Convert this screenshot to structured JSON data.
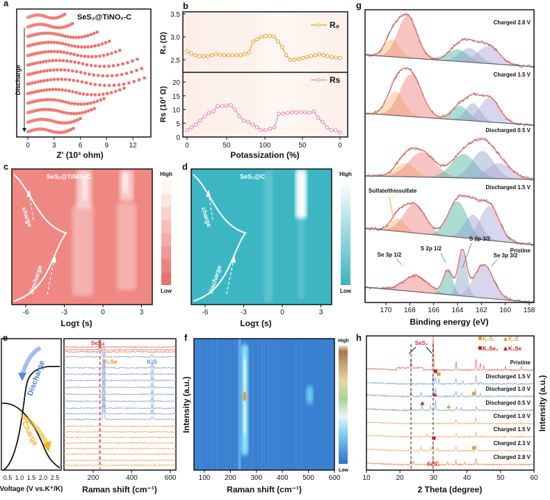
{
  "panels": {
    "a": "a",
    "b": "b",
    "c": "c",
    "d": "d",
    "e": "e",
    "f": "f",
    "g": "g",
    "h": "h"
  },
  "chart_data": [
    {
      "id": "a",
      "type": "scatter",
      "title": "SeS₂@TiNOₓ-C",
      "xlabel": "Z' (10³ ohm)",
      "xticks": [
        "0",
        "3",
        "6",
        "9",
        "12"
      ],
      "xlim": [
        -1.5,
        13.7
      ],
      "arrow_label": "Discharge",
      "curve_zmax": [
        4.2,
        5.1,
        7.9,
        9.3,
        10.5,
        12.5,
        13.0,
        13.3,
        11.0,
        8.7,
        7.6,
        6.0,
        5.2
      ]
    },
    {
      "id": "b",
      "type": "line",
      "xlabel": "Potassization (%)",
      "xticks": [
        "0",
        "50",
        "100",
        "50",
        "0"
      ],
      "top": {
        "ylabel": "R₀ (Ω)",
        "legend": "R₀",
        "color": "#f0a640",
        "ylim": [
          2.2,
          3.5
        ],
        "yticks": [
          "3.5",
          "3.0",
          "2.5"
        ],
        "values": [
          2.68,
          2.64,
          2.6,
          2.58,
          2.58,
          2.58,
          2.6,
          2.62,
          2.61,
          2.6,
          2.6,
          2.6,
          2.6,
          2.6,
          2.62,
          2.66,
          2.9,
          2.95,
          3.0,
          3.02,
          3.02,
          3.01,
          2.9,
          2.78,
          2.6,
          2.5,
          2.5,
          2.52,
          2.54,
          2.56,
          2.58,
          2.6,
          2.62,
          2.6,
          2.58,
          2.56,
          2.55,
          2.54
        ]
      },
      "bottom": {
        "ylabel": "Rs (10³ Ω)",
        "legend": "Rs",
        "color": "#e58fc0",
        "ylim": [
          0,
          23
        ],
        "yticks": [
          "20",
          "15",
          "10",
          "5",
          "0"
        ],
        "values": [
          2.5,
          3.5,
          4.5,
          6,
          7.5,
          8.8,
          9.3,
          11.2,
          11.3,
          11.4,
          11.6,
          10,
          7.5,
          6,
          5.5,
          4.5,
          3.5,
          2.5,
          2.5,
          3,
          3.5,
          8.5,
          8.5,
          8.7,
          9,
          9,
          9,
          9,
          8.8,
          9.3,
          7,
          5.5,
          3.5,
          2.5,
          2.5,
          1.6
        ]
      }
    },
    {
      "id": "c",
      "type": "heatmap",
      "title": "SeS₂@TiNOₓ-C",
      "xlabel": "Logτ (s)",
      "xticks": [
        "-6",
        "-3",
        "0",
        "3"
      ],
      "color_high": "High",
      "color_low": "Low",
      "curve_labels": [
        "charge",
        "discharge"
      ],
      "base_color": "#ef8883"
    },
    {
      "id": "d",
      "type": "heatmap",
      "title": "SeS₂@C",
      "xlabel": "Logτ (s)",
      "xticks": [
        "-6",
        "-3",
        "0",
        "3"
      ],
      "color_high": "High",
      "color_low": "Low",
      "curve_labels": [
        "charge",
        "discharge"
      ],
      "base_color": "#3db6c4"
    },
    {
      "id": "e",
      "type": "line",
      "left_xlabel": "Voltage (V vs.K⁺/K)",
      "left_xticks": [
        "0.5",
        "1.0",
        "1.5",
        "2.0",
        "2.5"
      ],
      "left_labels": [
        "Discharge",
        "Charge"
      ],
      "xlabel": "Raman shift (cm⁻¹)",
      "xticks": [
        "200",
        "400",
        "600"
      ],
      "annotations": [
        "SeS₂",
        "K₂Se",
        "K₂S"
      ],
      "groups": [
        {
          "name": "pristine",
          "color": "#e8837e",
          "count": 3,
          "peaks": [
            [
              235,
              12
            ]
          ]
        },
        {
          "name": "discharge",
          "color": "#98acd0",
          "count": 10,
          "peaks": [
            [
              255,
              22
            ],
            [
              505,
              4
            ]
          ]
        },
        {
          "name": "charge",
          "color": "#f2b07a",
          "count": 8,
          "peaks": [
            [
              235,
              5
            ]
          ]
        }
      ]
    },
    {
      "id": "f",
      "type": "heatmap",
      "xlabel": "Raman shift (cm⁻¹)",
      "ylabel": "Intensity (a.u.)",
      "xticks": [
        "100",
        "200",
        "300",
        "400",
        "500",
        "600"
      ],
      "xlim": [
        50,
        600
      ],
      "color_high": "High",
      "color_low": "Low",
      "bands_cm": [
        235,
        255,
        505
      ]
    },
    {
      "id": "g",
      "type": "area",
      "xlabel": "Binding energy (eV)",
      "xticks": [
        "170",
        "168",
        "166",
        "164",
        "162",
        "160",
        "158"
      ],
      "xlim": [
        171.7,
        157.6
      ],
      "annotations": [
        "Sulfate/thiosulfate",
        "Se 3p 1/2",
        "S 2p 1/2",
        "S 2p 3/2",
        "Se 3p 3/2"
      ],
      "spectra": [
        {
          "label": "Charged 2.8 V",
          "components": [
            [
              169.5,
              25,
              0.6,
              "#f5b86a"
            ],
            [
              168.2,
              60,
              0.8,
              "#f07e7a"
            ],
            [
              164.0,
              17,
              0.8,
              "#48b49c"
            ],
            [
              163.0,
              20,
              0.8,
              "#8fa3c9"
            ],
            [
              161.4,
              25,
              0.9,
              "#a9a6d6"
            ]
          ]
        },
        {
          "label": "Charged 1.5 V",
          "components": [
            [
              169.2,
              34,
              0.7,
              "#f5b86a"
            ],
            [
              167.9,
              60,
              0.9,
              "#f07e7a"
            ],
            [
              163.8,
              20,
              0.7,
              "#48b49c"
            ],
            [
              162.7,
              25,
              0.6,
              "#8fa3c9"
            ],
            [
              161.3,
              35,
              0.8,
              "#a9a6d6"
            ]
          ]
        },
        {
          "label": "Discharged 0.5 V",
          "components": [
            [
              168.4,
              19,
              0.8,
              "#f5b86a"
            ],
            [
              167.0,
              35,
              1.1,
              "#f07e7a"
            ],
            [
              163.5,
              34,
              1.0,
              "#48b49c"
            ],
            [
              161.9,
              39,
              0.9,
              "#8fa3c9"
            ],
            [
              160.5,
              22,
              1.0,
              "#a9a6d6"
            ]
          ]
        },
        {
          "label": "Discharged 1.5 V",
          "components": [
            [
              169.0,
              18,
              0.6,
              "#f5b86a"
            ],
            [
              167.6,
              41,
              0.9,
              "#f07e7a"
            ],
            [
              164.0,
              51,
              0.8,
              "#48b49c"
            ],
            [
              162.7,
              34,
              0.7,
              "#8fa3c9"
            ],
            [
              161.3,
              49,
              0.8,
              "#a9a6d6"
            ]
          ]
        },
        {
          "label": "Pristine",
          "components": [
            [
              167.5,
              23,
              1.0,
              "#f07e7a"
            ],
            [
              164.8,
              35,
              0.4,
              "#48b49c"
            ],
            [
              163.6,
              63,
              0.35,
              "#8fa3c9"
            ],
            [
              161.8,
              48,
              0.8,
              "#a9a6d6"
            ]
          ]
        }
      ]
    },
    {
      "id": "h",
      "type": "line",
      "xlabel": "2 Theta (degree)",
      "ylabel": "Intensity (a.u.)",
      "xticks": [
        "10",
        "20",
        "30",
        "40",
        "50",
        "60"
      ],
      "xlim": [
        10,
        60
      ],
      "legend": [
        "K₂S₂",
        "K₂S",
        "K₂Se₂",
        "K₂Se"
      ],
      "annotations": [
        "SeS₂",
        "SeS₂"
      ],
      "reference_lines_deg": [
        23.3,
        29.9
      ],
      "patterns": [
        {
          "label": "Pristine",
          "color": "#ee7f7b",
          "peaks": [
            [
              23.3,
              14
            ],
            [
              29.9,
              50
            ],
            [
              36.8,
              12
            ],
            [
              42.7,
              16
            ],
            [
              44,
              10
            ],
            [
              45,
              6
            ],
            [
              51.5,
              6
            ],
            [
              56.3,
              6
            ]
          ]
        },
        {
          "label": "Discharged 1.5 V",
          "color": "#9aafd2",
          "peaks": [
            [
              23.3,
              7
            ],
            [
              29.9,
              14
            ],
            [
              30.6,
              10
            ],
            [
              31.6,
              8
            ],
            [
              36.7,
              8
            ],
            [
              38.8,
              4
            ],
            [
              42.7,
              12
            ],
            [
              44,
              4
            ]
          ]
        },
        {
          "label": "Discharged 1.0 V",
          "color": "#9aafd2",
          "peaks": [
            [
              23.3,
              8
            ],
            [
              26.3,
              6
            ],
            [
              29.9,
              14
            ],
            [
              30.6,
              12
            ],
            [
              36.7,
              8
            ],
            [
              38.5,
              5
            ],
            [
              42.5,
              10
            ],
            [
              44,
              4
            ]
          ]
        },
        {
          "label": "Discharged 0.5 V",
          "color": "#9aafd2",
          "peaks": [
            [
              23.3,
              6
            ],
            [
              26.6,
              10
            ],
            [
              29.1,
              6
            ],
            [
              30.6,
              14
            ],
            [
              34.5,
              3
            ],
            [
              36.9,
              5
            ],
            [
              38.3,
              4
            ],
            [
              42.8,
              6
            ]
          ]
        },
        {
          "label": "Charged 1.0 V",
          "color": "#f5bb8a",
          "peaks": [
            [
              36.7,
              6
            ],
            [
              42.6,
              10
            ]
          ]
        },
        {
          "label": "Charged 1.5 V",
          "color": "#f5bb8a",
          "peaks": [
            [
              28,
              3
            ],
            [
              36.8,
              5
            ],
            [
              42.7,
              7
            ]
          ]
        },
        {
          "label": "Charged 2.3 V",
          "color": "#f5bb8a",
          "peaks": [
            [
              23.3,
              5
            ],
            [
              26.3,
              6
            ],
            [
              29.2,
              6
            ],
            [
              29.9,
              10
            ],
            [
              31.2,
              4
            ],
            [
              36.7,
              6
            ],
            [
              42.7,
              9
            ]
          ]
        },
        {
          "label": "Charged 2.8 V",
          "color": "#f29a73",
          "peaks": [
            [
              23.3,
              6
            ],
            [
              24.1,
              5
            ],
            [
              29.9,
              10
            ],
            [
              31.3,
              6
            ],
            [
              34.2,
              4
            ],
            [
              36.7,
              6
            ],
            [
              39.3,
              4
            ],
            [
              42.7,
              9
            ]
          ]
        }
      ]
    }
  ]
}
